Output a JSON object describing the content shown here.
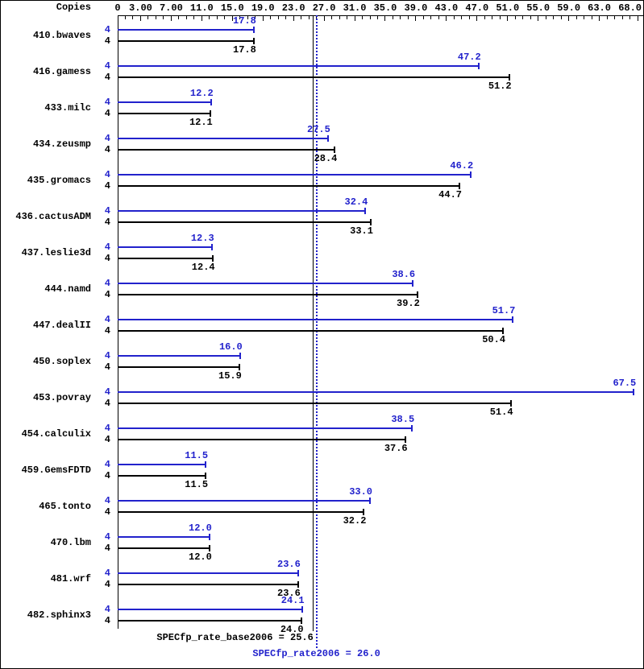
{
  "colors": {
    "peak": "#2222cc",
    "base": "#000000"
  },
  "axis": {
    "copies_label": "Copies",
    "ticks": [
      {
        "label": "0",
        "value": 0
      },
      {
        "label": "3.00",
        "value": 3
      },
      {
        "label": "7.00",
        "value": 7
      },
      {
        "label": "11.0",
        "value": 11
      },
      {
        "label": "15.0",
        "value": 15
      },
      {
        "label": "19.0",
        "value": 19
      },
      {
        "label": "23.0",
        "value": 23
      },
      {
        "label": "27.0",
        "value": 27
      },
      {
        "label": "31.0",
        "value": 31
      },
      {
        "label": "35.0",
        "value": 35
      },
      {
        "label": "39.0",
        "value": 39
      },
      {
        "label": "43.0",
        "value": 43
      },
      {
        "label": "47.0",
        "value": 47
      },
      {
        "label": "51.0",
        "value": 51
      },
      {
        "label": "55.0",
        "value": 55
      },
      {
        "label": "59.0",
        "value": 59
      },
      {
        "label": "63.0",
        "value": 63
      },
      {
        "label": "68.0",
        "value": 68
      }
    ]
  },
  "chart_data": {
    "type": "bar",
    "orientation": "horizontal",
    "xlim": [
      0,
      68
    ],
    "copies": 4,
    "categories": [
      "410.bwaves",
      "416.gamess",
      "433.milc",
      "434.zeusmp",
      "435.gromacs",
      "436.cactusADM",
      "437.leslie3d",
      "444.namd",
      "447.dealII",
      "450.soplex",
      "453.povray",
      "454.calculix",
      "459.GemsFDTD",
      "465.tonto",
      "470.lbm",
      "481.wrf",
      "482.sphinx3"
    ],
    "series": [
      {
        "name": "SPECfp_rate2006",
        "color": "#2222cc",
        "values": [
          17.8,
          47.2,
          12.2,
          27.5,
          46.2,
          32.4,
          12.3,
          38.6,
          51.7,
          16.0,
          67.5,
          38.5,
          11.5,
          33.0,
          12.0,
          23.6,
          24.1
        ]
      },
      {
        "name": "SPECfp_rate_base2006",
        "color": "#000000",
        "values": [
          17.8,
          51.2,
          12.1,
          28.4,
          44.7,
          33.1,
          12.4,
          39.2,
          50.4,
          15.9,
          51.4,
          37.6,
          11.5,
          32.2,
          12.0,
          23.6,
          24.0
        ]
      }
    ],
    "reference_lines": [
      {
        "id": "peak-mean",
        "value": 26.0,
        "color": "#2222cc",
        "style": "dotted"
      },
      {
        "id": "base-mean",
        "value": 25.6,
        "color": "#000000",
        "style": "solid"
      }
    ]
  },
  "footer": {
    "base_summary": "SPECfp_rate_base2006 = 25.6",
    "peak_summary": "SPECfp_rate2006 = 26.0"
  }
}
